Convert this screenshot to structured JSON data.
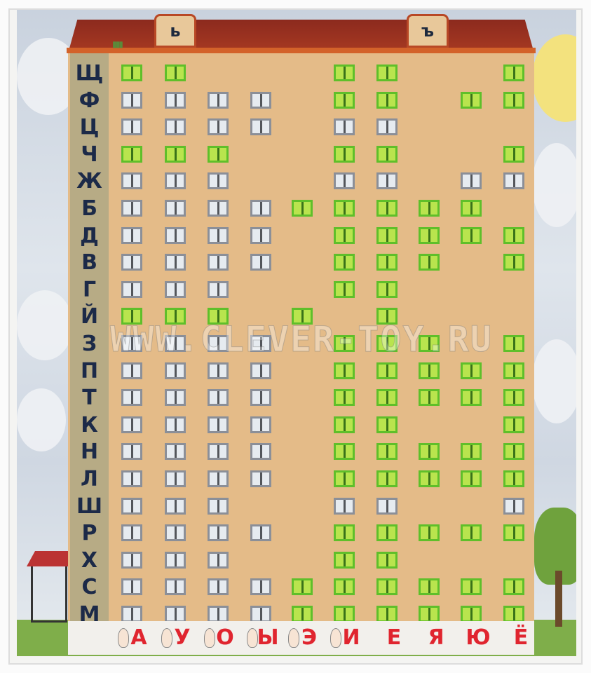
{
  "poster": {
    "roof_letters": [
      "ь",
      "ъ"
    ],
    "watermark": "WWW.CLEVER-TOY.RU",
    "vowels": [
      "А",
      "У",
      "О",
      "Ы",
      "Э",
      "И",
      "Е",
      "Я",
      "Ю",
      "Ё"
    ],
    "window_legend": {
      "G": "green window",
      "g": "gray window",
      ".": "no window"
    },
    "colors": {
      "green_window": "#b9e44e",
      "gray_window": "#e6ebf0",
      "facade": "#e4bb88",
      "consonant": "#1c2a48",
      "vowel": "#e0252f",
      "roof": "#a83a22"
    },
    "rows": [
      {
        "letter": "Щ",
        "windows": "GG...GG..G"
      },
      {
        "letter": "Ф",
        "windows": "gggg.GG.GG"
      },
      {
        "letter": "Ц",
        "windows": "gggg.gg..."
      },
      {
        "letter": "Ч",
        "windows": "GGG..GG..G"
      },
      {
        "letter": "Ж",
        "windows": "ggg..gg.gg"
      },
      {
        "letter": "Б",
        "windows": "ggggGGGGG."
      },
      {
        "letter": "Д",
        "windows": "gggg.GGGGG"
      },
      {
        "letter": "В",
        "windows": "gggg.GGG.G"
      },
      {
        "letter": "Г",
        "windows": "ggg..GG..."
      },
      {
        "letter": "Й",
        "windows": "GGG.G.G..."
      },
      {
        "letter": "З",
        "windows": "gggg.GGG.G"
      },
      {
        "letter": "П",
        "windows": "gggg.GGGGG"
      },
      {
        "letter": "Т",
        "windows": "gggg.GGGGG"
      },
      {
        "letter": "К",
        "windows": "gggg.GG..G"
      },
      {
        "letter": "Н",
        "windows": "gggg.GGGGG"
      },
      {
        "letter": "Л",
        "windows": "gggg.GGGGG"
      },
      {
        "letter": "Ш",
        "windows": "ggg..gg..g"
      },
      {
        "letter": "Р",
        "windows": "gggg.GGGGG"
      },
      {
        "letter": "Х",
        "windows": "ggg..GG..."
      },
      {
        "letter": "С",
        "windows": "ggggGGGGGG"
      },
      {
        "letter": "М",
        "windows": "ggggGGGGGG"
      }
    ]
  }
}
